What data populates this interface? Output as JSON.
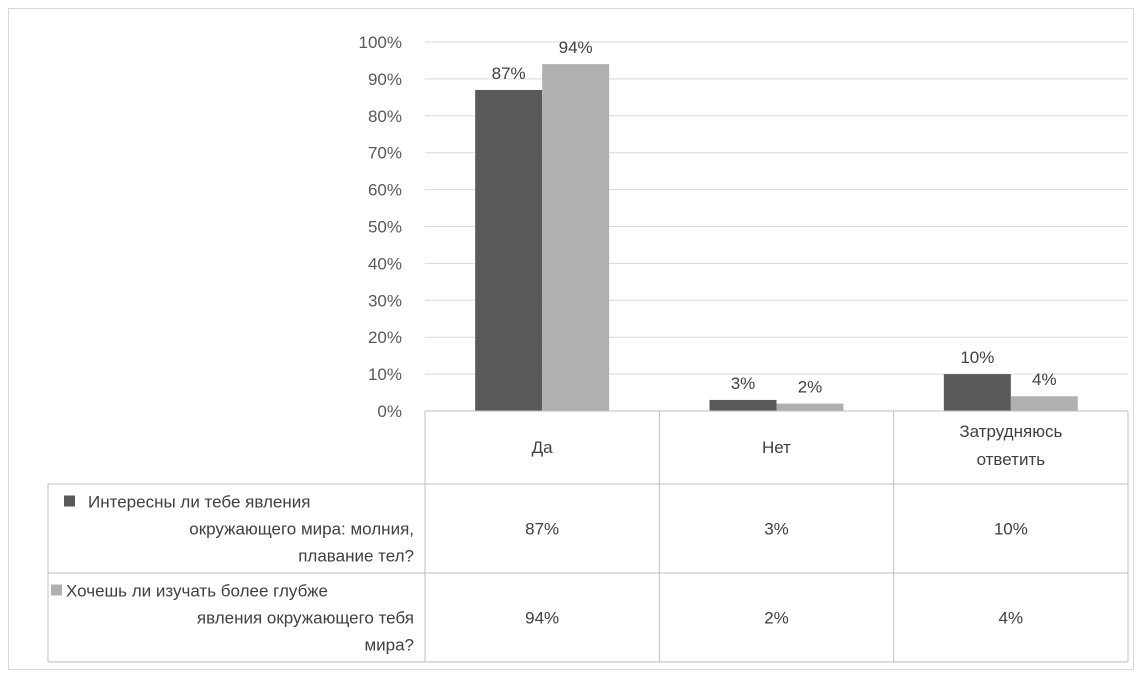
{
  "chart_data": {
    "type": "bar",
    "categories": [
      "Да",
      "Нет",
      "Затрудняюсь ответить"
    ],
    "series": [
      {
        "name": "Интересны ли тебе явления окружающего мира: молния, плавание тел?",
        "values": [
          87,
          3,
          10
        ],
        "labels": [
          "87%",
          "3%",
          "10%"
        ],
        "color": "#595959"
      },
      {
        "name": "Хочешь ли изучать более глубже явления окружающего тебя мира?",
        "values": [
          94,
          2,
          4
        ],
        "labels": [
          "94%",
          "2%",
          "4%"
        ],
        "color": "#b0b0b0"
      }
    ],
    "ylim": [
      0,
      100
    ],
    "yticks": [
      "0%",
      "10%",
      "20%",
      "30%",
      "40%",
      "50%",
      "60%",
      "70%",
      "80%",
      "90%",
      "100%"
    ],
    "grid": true,
    "legend": "data-table"
  }
}
